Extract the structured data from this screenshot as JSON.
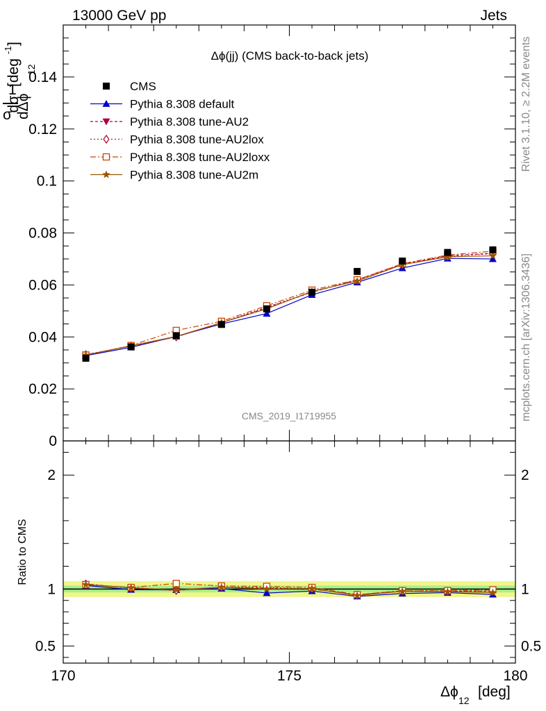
{
  "header": {
    "energy_label": "13000 GeV pp",
    "process_label": "Jets"
  },
  "side_labels": {
    "rivet": "Rivet 3.1.10, ≥ 2.2M events",
    "mcplots": "mcplots.cern.ch [arXiv:1306.3436]"
  },
  "chart_data": {
    "type": "line",
    "title": "Δϕ(jj) (CMS back-to-back jets)",
    "watermark": "CMS_2019_I1719955",
    "xlabel": "Δϕ",
    "xlabel_sub": "12",
    "xlabel_unit": "[deg]",
    "ylabel_top": "1",
    "ylabel_num": "dσ",
    "ylabel_den": "σ",
    "ylabel_den2": "dΔϕ",
    "ylabel_den_sub": "12",
    "ylabel_unit": "[deg",
    "ylabel_unit_sup": "-1",
    "ylabel_unit_end": "]",
    "ratio_ylabel": "Ratio to CMS",
    "xlim": [
      170,
      180
    ],
    "ylim": [
      0,
      0.16
    ],
    "ratio_ylim": [
      0.35,
      2.3
    ],
    "x_ticks": [
      "170",
      "175",
      "180"
    ],
    "y_ticks": [
      "0",
      "0.02",
      "0.04",
      "0.06",
      "0.08",
      "0.1",
      "0.12",
      "0.14"
    ],
    "ratio_ticks": [
      "0.5",
      "1",
      "2"
    ],
    "legend_position": "top-left",
    "x": [
      170.5,
      171.5,
      172.5,
      173.5,
      174.5,
      175.5,
      176.5,
      177.5,
      178.5,
      179.5
    ],
    "data": {
      "name": "CMS",
      "values": [
        0.0318,
        0.0362,
        0.0405,
        0.0448,
        0.0508,
        0.0572,
        0.0652,
        0.0692,
        0.0725,
        0.0735
      ],
      "band_inner": 0.03,
      "band_outer": 0.07
    },
    "series": [
      {
        "name": "Pythia 8.308 default",
        "color": "#0000cc",
        "marker": "triangle-up",
        "dash": "",
        "values": [
          0.0328,
          0.036,
          0.0402,
          0.045,
          0.049,
          0.0562,
          0.061,
          0.0665,
          0.0702,
          0.07
        ]
      },
      {
        "name": "Pythia 8.308 tune-AU2",
        "color": "#aa0044",
        "marker": "triangle-down",
        "dash": "4,3",
        "values": [
          0.0332,
          0.0365,
          0.04,
          0.0455,
          0.0512,
          0.0572,
          0.062,
          0.068,
          0.0712,
          0.0722
        ]
      },
      {
        "name": "Pythia 8.308 tune-AU2lox",
        "color": "#aa1133",
        "marker": "diamond-open",
        "dash": "2,3",
        "values": [
          0.0332,
          0.0365,
          0.04,
          0.0455,
          0.0515,
          0.0573,
          0.0618,
          0.0678,
          0.071,
          0.072
        ]
      },
      {
        "name": "Pythia 8.308 tune-AU2loxx",
        "color": "#cc4400",
        "marker": "square-open",
        "dash": "8,3,2,3",
        "values": [
          0.033,
          0.0367,
          0.0425,
          0.046,
          0.052,
          0.058,
          0.062,
          0.0682,
          0.0715,
          0.073
        ]
      },
      {
        "name": "Pythia 8.308 tune-AU2m",
        "color": "#995500",
        "marker": "star",
        "dash": "",
        "values": [
          0.033,
          0.0366,
          0.0402,
          0.0455,
          0.0508,
          0.0575,
          0.0615,
          0.0678,
          0.0708,
          0.0712
        ]
      }
    ]
  }
}
